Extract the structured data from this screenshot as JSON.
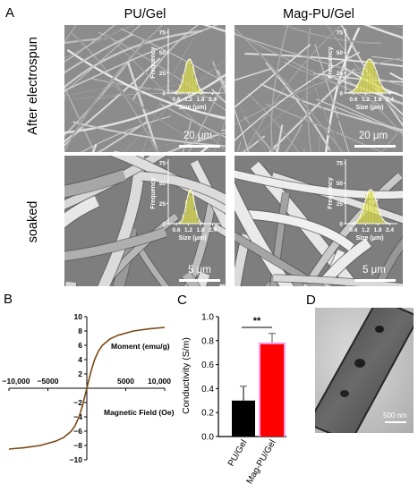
{
  "panel_letters": {
    "a": "A",
    "b": "B",
    "c": "C",
    "d": "D"
  },
  "columns": [
    "PU/Gel",
    "Mag-PU/Gel"
  ],
  "rows": [
    "After electrospun",
    "soaked"
  ],
  "inset": {
    "ylabel": "Frequency",
    "xlabel": "Size (μm)",
    "yticks": [
      "0",
      "25",
      "50",
      "75"
    ],
    "xticks": [
      "0.6",
      "1.2",
      "1.8",
      "2.4"
    ]
  },
  "scale_bars": {
    "row1": "20 μm",
    "row2": "5 μm",
    "tem": "500 nm"
  },
  "significance": "**",
  "colors": {
    "hist_fill": "#e8e85a",
    "fit_line": "#ffffff",
    "mag_curve": "#7a4a14",
    "bar_pu": "#000000",
    "bar_mag": "#ff0000",
    "bar_err_mag": "#f0a0f0"
  },
  "chart_data": [
    {
      "type": "line",
      "xlabel": "Magnetic Field (Oe)",
      "ylabel": "Moment (emu/g)",
      "xlim": [
        -10000,
        10000
      ],
      "ylim": [
        -10,
        10
      ],
      "xticks": [
        "−10,000",
        "−5000",
        "5000",
        "10,000"
      ],
      "yticks": [
        "10",
        "8",
        "6",
        "4",
        "2",
        "−2",
        "−4",
        "−6",
        "−8",
        "−10"
      ],
      "series": [
        {
          "x": [
            -10000,
            -8000,
            -6000,
            -4000,
            -3000,
            -2000,
            -1500,
            -1000,
            -600,
            -300,
            0,
            300,
            600,
            1000,
            1500,
            2000,
            3000,
            4000,
            6000,
            8000,
            10000
          ],
          "y": [
            -8.5,
            -8.3,
            -8.0,
            -7.4,
            -6.9,
            -6.0,
            -5.2,
            -4.0,
            -2.6,
            -1.3,
            0,
            1.3,
            2.6,
            4.0,
            5.2,
            6.0,
            6.9,
            7.4,
            8.0,
            8.3,
            8.5
          ]
        }
      ]
    },
    {
      "type": "bar",
      "ylabel": "Conductivity (S/m)",
      "categories": [
        "PU/Gel",
        "Mag-PU/Gel"
      ],
      "values": [
        0.3,
        0.77
      ],
      "errors": [
        0.12,
        0.09
      ],
      "ylim": [
        0,
        1.0
      ],
      "yticks": [
        "0.0",
        "0.2",
        "0.4",
        "0.6",
        "0.8",
        "1.0"
      ]
    }
  ]
}
